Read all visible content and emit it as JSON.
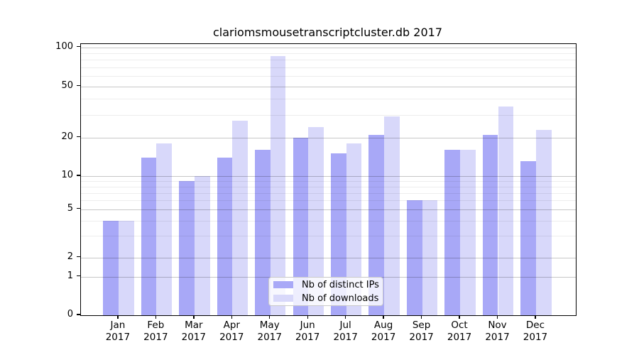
{
  "title": "clariomsmousetranscriptcluster.db 2017",
  "chart_data": {
    "type": "bar",
    "title": "clariomsmousetranscriptcluster.db 2017",
    "categories": [
      "Jan",
      "Feb",
      "Mar",
      "Apr",
      "May",
      "Jun",
      "Jul",
      "Aug",
      "Sep",
      "Oct",
      "Nov",
      "Dec"
    ],
    "year": "2017",
    "series": [
      {
        "name": "Nb of distinct IPs",
        "color": "#a8a8f7",
        "values": [
          4,
          14,
          9,
          14,
          16,
          20,
          15,
          21,
          6,
          16,
          21,
          13
        ]
      },
      {
        "name": "Nb of downloads",
        "color": "#d8d8fa",
        "values": [
          4,
          18,
          10,
          27,
          85,
          24,
          18,
          29,
          6,
          16,
          35,
          23
        ]
      }
    ],
    "y_axis": {
      "tick_values": [
        0,
        1,
        2,
        5,
        10,
        20,
        50,
        100
      ],
      "tick_labels": [
        "0",
        "1",
        "2",
        "5",
        "10",
        "20",
        "50",
        "100"
      ],
      "minor_gridline_values": [
        3,
        4,
        6,
        7,
        8,
        9,
        30,
        40,
        60,
        70,
        80,
        90
      ],
      "scale": "log-like",
      "range": [
        0,
        100
      ]
    },
    "grid": true,
    "legend_position": "bottom-center",
    "colors": {
      "distinct_ips": "#a8a8f7",
      "downloads": "#d8d8fa"
    }
  }
}
